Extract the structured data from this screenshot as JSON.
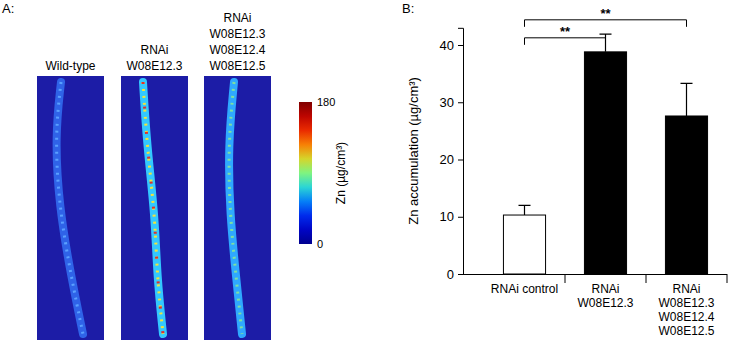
{
  "chart_data": [
    {
      "type": "image",
      "title": "A:",
      "panels": [
        [
          "Wild-type"
        ],
        [
          "RNAi",
          "W08E12.3"
        ],
        [
          "RNAi",
          "W08E12.3",
          "W08E12.4",
          "W08E12.5"
        ]
      ],
      "colorbar": {
        "range": [
          0,
          180
        ],
        "ticks": [
          0,
          180
        ]
      },
      "colorbar_label": "Zn (µg/cm³)"
    },
    {
      "type": "bar",
      "title": "B:",
      "categories": [
        [
          "RNAi control"
        ],
        [
          "RNAi",
          "W08E12.3"
        ],
        [
          "RNAi",
          "W08E12.3",
          "W08E12.4",
          "W08E12.5"
        ]
      ],
      "values": [
        10.3,
        38.8,
        27.6
      ],
      "errors": [
        1.7,
        3.1,
        5.7
      ],
      "colors": [
        "#ffffff",
        "#000000",
        "#000000"
      ],
      "ylabel": "Zn accumulation (µg/cm³)",
      "ylim": [
        0,
        43
      ],
      "yticks": [
        0,
        10,
        20,
        30,
        40
      ],
      "annotations": [
        {
          "between": [
            0,
            1
          ],
          "label": "**"
        },
        {
          "between": [
            0,
            2
          ],
          "label": "**"
        }
      ]
    }
  ]
}
